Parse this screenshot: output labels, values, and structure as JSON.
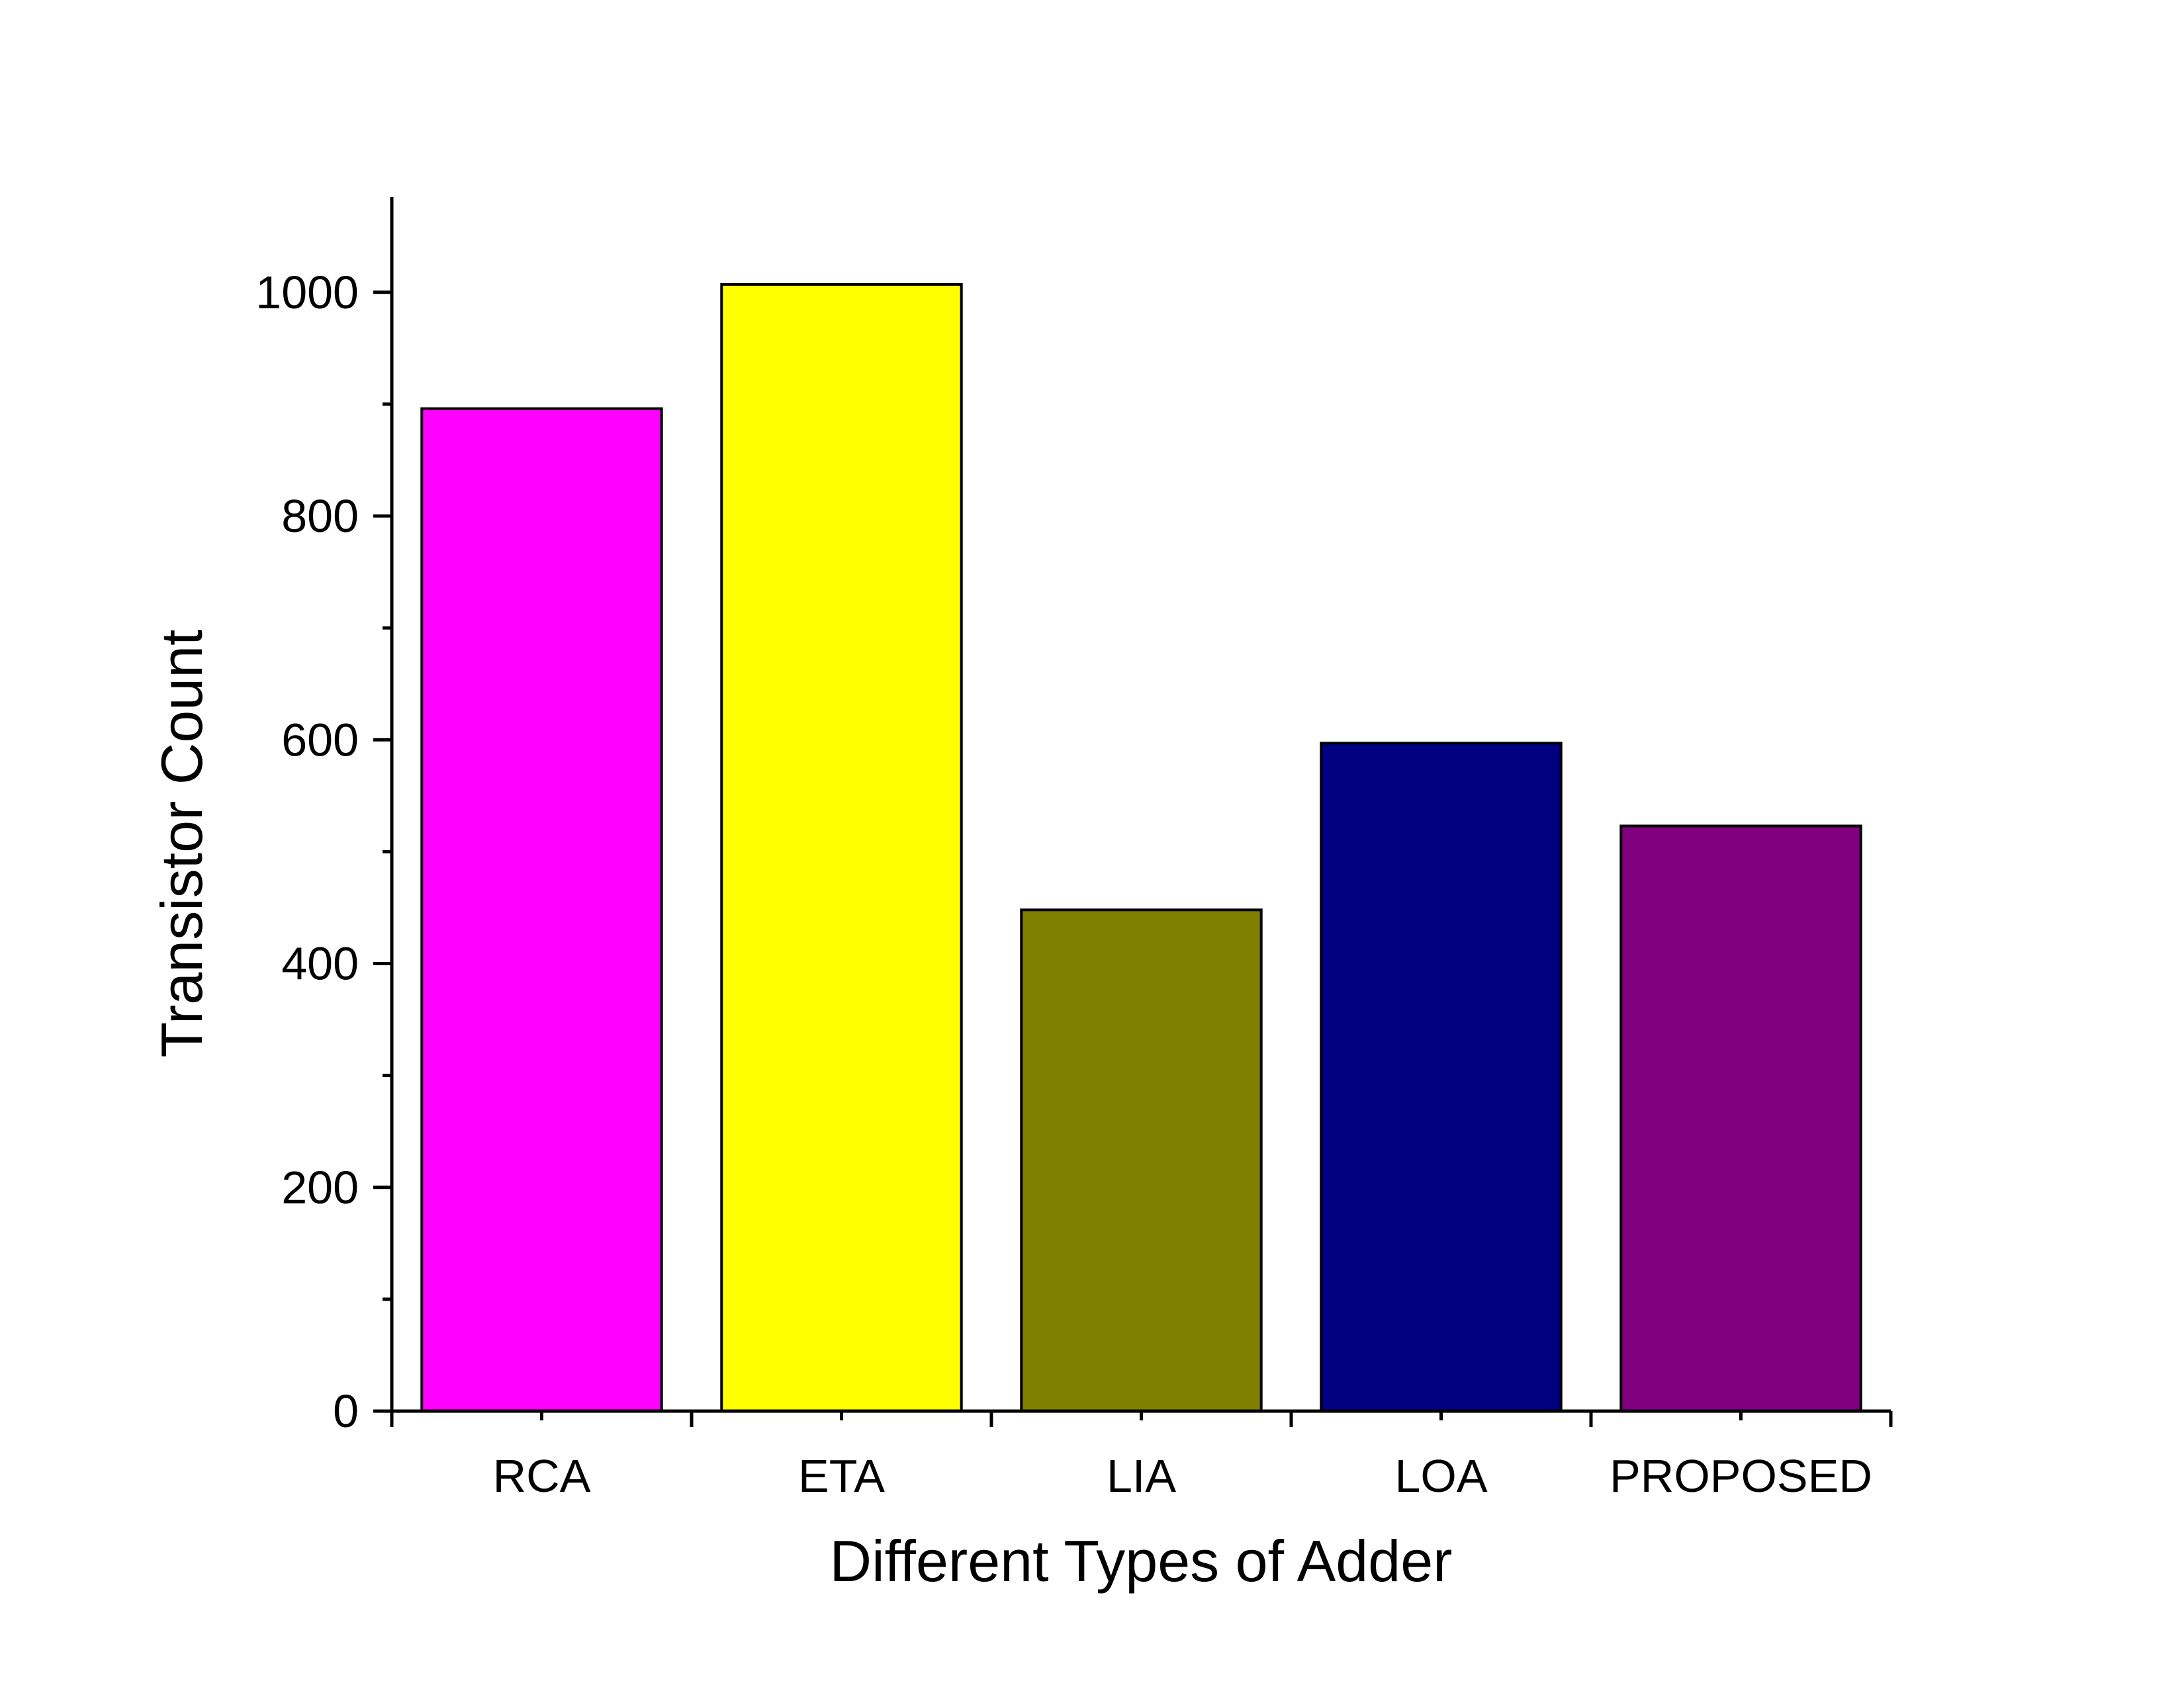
{
  "chart_data": {
    "type": "bar",
    "categories": [
      "RCA",
      "ETA",
      "LIA",
      "LOA",
      "PROPOSED"
    ],
    "values": [
      896,
      1007,
      448,
      597,
      523
    ],
    "colors": [
      "#FF00FF",
      "#FFFF00",
      "#808000",
      "#000080",
      "#800080"
    ],
    "xlabel": "Different Types of Adder",
    "ylabel": "Transistor Count",
    "ylim": [
      0,
      1085
    ],
    "yticks": [
      0,
      200,
      400,
      600,
      800,
      1000
    ],
    "yticks_minor": [
      100,
      300,
      500,
      700,
      900
    ],
    "grid": false,
    "legend": "none"
  }
}
